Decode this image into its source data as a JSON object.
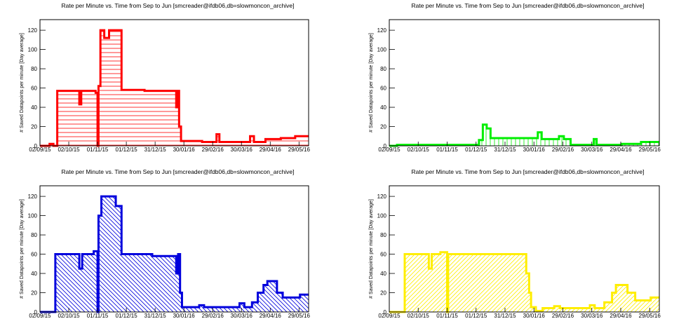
{
  "chart_data": [
    {
      "type": "step-area",
      "title": "Rate per Minute vs. Time from Sep to Jun [smcreader@ifdb06,db=slowmoncon_archive]",
      "ylabel": "# Saved Datapoints per minute [Day average]",
      "color": "#ff0000",
      "hatch": "horizontal",
      "xlim": [
        "2015-09-02",
        "2016-06-08"
      ],
      "ylim": [
        0,
        131
      ],
      "xticks": [
        {
          "value": "2015-09-02",
          "label": "02/09/15"
        },
        {
          "value": "2015-10-02",
          "label": "02/10/15"
        },
        {
          "value": "2015-11-01",
          "label": "01/11/15"
        },
        {
          "value": "2015-12-01",
          "label": "01/12/15"
        },
        {
          "value": "2015-12-31",
          "label": "31/12/15"
        },
        {
          "value": "2016-01-30",
          "label": "30/01/16"
        },
        {
          "value": "2016-02-29",
          "label": "29/02/16"
        },
        {
          "value": "2016-03-30",
          "label": "30/03/16"
        },
        {
          "value": "2016-04-29",
          "label": "29/04/16"
        },
        {
          "value": "2016-05-29",
          "label": "29/05/16"
        }
      ],
      "yticks": [
        0,
        20,
        40,
        60,
        80,
        100,
        120
      ],
      "x": [
        "2015-09-02",
        "2015-09-12",
        "2015-09-16",
        "2015-09-20",
        "2015-10-13",
        "2015-10-15",
        "2015-10-30",
        "2015-11-01",
        "2015-11-02",
        "2015-11-04",
        "2015-11-08",
        "2015-11-13",
        "2015-11-26",
        "2015-12-20",
        "2016-01-22",
        "2016-01-23",
        "2016-01-25",
        "2016-01-27",
        "2016-02-18",
        "2016-03-04",
        "2016-03-07",
        "2016-04-08",
        "2016-04-12",
        "2016-04-24",
        "2016-05-10",
        "2016-05-25"
      ],
      "values": [
        0,
        2,
        0,
        57,
        43,
        57,
        55,
        0,
        62,
        120,
        112,
        120,
        58,
        57,
        40,
        57,
        20,
        5,
        4,
        12,
        4,
        10,
        4,
        7,
        8,
        10
      ]
    },
    {
      "type": "step-area",
      "title": "Rate per Minute vs. Time from Sep to Jun [smcreader@ifdb06,db=slowmoncon_archive]",
      "ylabel": "# Saved Datapoints per minute [Day average]",
      "color": "#00ee00",
      "hatch": "vertical",
      "xlim": [
        "2015-09-02",
        "2016-06-08"
      ],
      "ylim": [
        0,
        131
      ],
      "xticks": [
        {
          "value": "2015-09-02",
          "label": "02/09/15"
        },
        {
          "value": "2015-10-02",
          "label": "02/10/15"
        },
        {
          "value": "2015-11-01",
          "label": "01/11/15"
        },
        {
          "value": "2015-12-01",
          "label": "01/12/15"
        },
        {
          "value": "2015-12-31",
          "label": "31/12/15"
        },
        {
          "value": "2016-01-30",
          "label": "30/01/16"
        },
        {
          "value": "2016-02-29",
          "label": "29/02/16"
        },
        {
          "value": "2016-03-30",
          "label": "30/03/16"
        },
        {
          "value": "2016-04-29",
          "label": "29/04/16"
        },
        {
          "value": "2016-05-29",
          "label": "29/05/16"
        }
      ],
      "yticks": [
        0,
        20,
        40,
        60,
        80,
        100,
        120
      ],
      "x": [
        "2015-09-02",
        "2015-09-10",
        "2015-12-04",
        "2015-12-08",
        "2015-12-12",
        "2015-12-16",
        "2016-02-03",
        "2016-02-07",
        "2016-02-25",
        "2016-03-01",
        "2016-03-08",
        "2016-04-01",
        "2016-04-04",
        "2016-04-30",
        "2016-05-20"
      ],
      "values": [
        0,
        1,
        6,
        22,
        18,
        8,
        14,
        7,
        10,
        7,
        1,
        7,
        1,
        2,
        4
      ]
    },
    {
      "type": "step-area",
      "title": "Rate per Minute vs. Time from Sep to Jun [smcreader@ifdb06,db=slowmoncon_archive]",
      "ylabel": "# Saved Datapoints per minute [Day average]",
      "color": "#0000dd",
      "hatch": "backslash",
      "xlim": [
        "2015-09-02",
        "2016-06-08"
      ],
      "ylim": [
        0,
        131
      ],
      "xticks": [
        {
          "value": "2015-09-02",
          "label": "02/09/15"
        },
        {
          "value": "2015-10-02",
          "label": "02/10/15"
        },
        {
          "value": "2015-11-01",
          "label": "01/11/15"
        },
        {
          "value": "2015-12-01",
          "label": "01/12/15"
        },
        {
          "value": "2015-12-31",
          "label": "31/12/15"
        },
        {
          "value": "2016-01-30",
          "label": "30/01/16"
        },
        {
          "value": "2016-02-29",
          "label": "29/02/16"
        },
        {
          "value": "2016-03-30",
          "label": "30/03/16"
        },
        {
          "value": "2016-04-29",
          "label": "29/04/16"
        },
        {
          "value": "2016-05-29",
          "label": "29/05/16"
        }
      ],
      "yticks": [
        0,
        20,
        40,
        60,
        80,
        100,
        120
      ],
      "x": [
        "2015-09-02",
        "2015-09-18",
        "2015-10-13",
        "2015-10-16",
        "2015-10-28",
        "2015-11-01",
        "2015-11-02",
        "2015-11-05",
        "2015-11-20",
        "2015-11-26",
        "2015-12-28",
        "2016-01-22",
        "2016-01-24",
        "2016-01-26",
        "2016-01-28",
        "2016-02-15",
        "2016-02-20",
        "2016-03-28",
        "2016-04-02",
        "2016-04-10",
        "2016-04-16",
        "2016-04-22",
        "2016-04-26",
        "2016-05-06",
        "2016-05-12",
        "2016-05-30"
      ],
      "values": [
        0,
        60,
        45,
        60,
        63,
        0,
        100,
        120,
        110,
        60,
        58,
        40,
        60,
        20,
        5,
        7,
        5,
        9,
        5,
        10,
        20,
        28,
        32,
        20,
        15,
        18
      ]
    },
    {
      "type": "step-area",
      "title": "Rate per Minute vs. Time from Sep to Jun [smcreader@ifdb06,db=slowmoncon_archive]",
      "ylabel": "# Saved Datapoints per minute [Day average]",
      "color": "#ffee00",
      "hatch": "slash",
      "xlim": [
        "2015-09-02",
        "2016-06-08"
      ],
      "ylim": [
        0,
        131
      ],
      "xticks": [
        {
          "value": "2015-09-02",
          "label": "02/09/15"
        },
        {
          "value": "2015-10-02",
          "label": "02/10/15"
        },
        {
          "value": "2015-11-01",
          "label": "01/11/15"
        },
        {
          "value": "2015-12-01",
          "label": "01/12/15"
        },
        {
          "value": "2015-12-31",
          "label": "31/12/15"
        },
        {
          "value": "2016-01-30",
          "label": "30/01/16"
        },
        {
          "value": "2016-02-29",
          "label": "29/02/16"
        },
        {
          "value": "2016-03-30",
          "label": "30/03/16"
        },
        {
          "value": "2016-04-29",
          "label": "29/04/16"
        },
        {
          "value": "2016-05-29",
          "label": "29/05/16"
        }
      ],
      "yticks": [
        0,
        20,
        40,
        60,
        80,
        100,
        120
      ],
      "x": [
        "2015-09-02",
        "2015-09-18",
        "2015-10-13",
        "2015-10-16",
        "2015-10-25",
        "2015-11-01",
        "2015-11-02",
        "2016-01-22",
        "2016-01-25",
        "2016-01-27",
        "2016-02-01",
        "2016-02-08",
        "2016-02-20",
        "2016-02-26",
        "2016-03-28",
        "2016-04-02",
        "2016-04-12",
        "2016-04-20",
        "2016-04-24",
        "2016-05-06",
        "2016-05-14",
        "2016-05-30"
      ],
      "values": [
        0,
        60,
        45,
        60,
        62,
        0,
        60,
        40,
        20,
        5,
        1,
        4,
        6,
        4,
        7,
        4,
        10,
        20,
        28,
        20,
        12,
        15
      ]
    }
  ]
}
